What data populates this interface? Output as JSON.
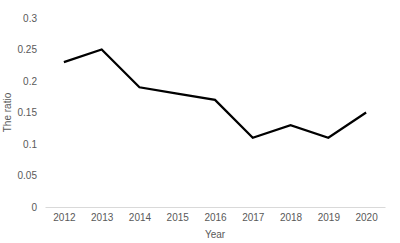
{
  "chart_data": {
    "type": "line",
    "x_label": "Year",
    "y_label": "The ratio",
    "categories": [
      "2012",
      "2013",
      "2014",
      "2015",
      "2016",
      "2017",
      "2018",
      "2019",
      "2020"
    ],
    "values": [
      0.23,
      0.25,
      0.19,
      0.18,
      0.17,
      0.11,
      0.13,
      0.11,
      0.15
    ],
    "color": "#000000",
    "ylim": [
      0,
      0.3
    ],
    "yticks": [
      0,
      0.05,
      0.1,
      0.15,
      0.2,
      0.25,
      0.3
    ],
    "grid": false
  }
}
